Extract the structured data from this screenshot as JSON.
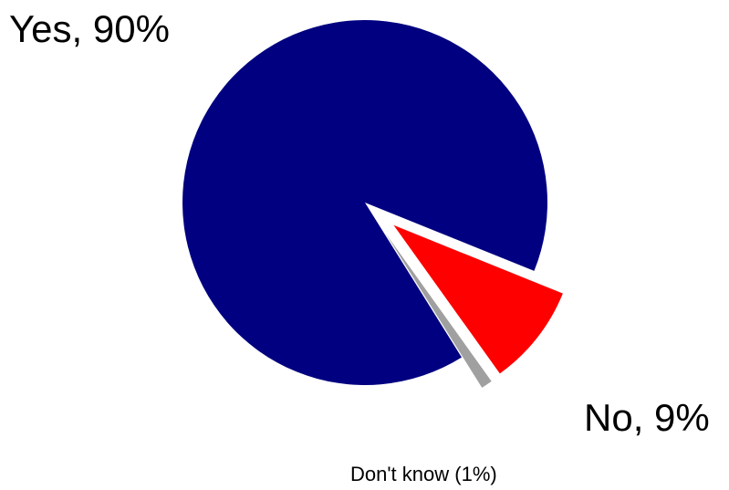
{
  "chart_data": {
    "type": "pie",
    "title": "",
    "slices": [
      {
        "label": "Yes, 90%",
        "value": 90,
        "color": "#000080",
        "exploded": false
      },
      {
        "label": "Don't know (1%)",
        "value": 1,
        "color": "#a0a0a0",
        "exploded": true
      },
      {
        "label": "No, 9%",
        "value": 9,
        "color": "#ff0000",
        "exploded": true
      }
    ],
    "legend": "none"
  }
}
